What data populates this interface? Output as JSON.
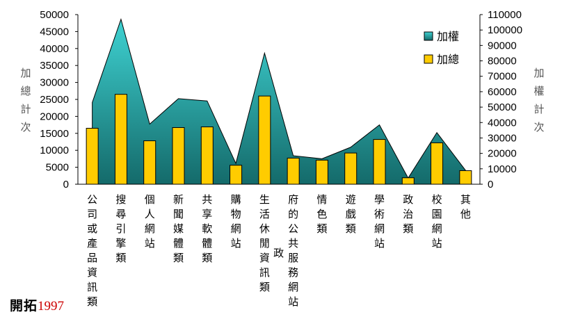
{
  "chart_data": {
    "type": "bar+area",
    "categories": [
      "公司或產品資訊類",
      "搜尋引擎類",
      "個人網站",
      "新聞媒體類",
      "共享軟體類",
      "購物網站",
      "生活休閒資訊類",
      "政府的公共服務網站",
      "情色類",
      "遊戲類",
      "學術網站",
      "政治類",
      "校園網站",
      "其他"
    ],
    "series": [
      {
        "name": "加權",
        "type": "area",
        "axis": "right",
        "color": "#2a8f8f",
        "values": [
          53000,
          107000,
          39000,
          55500,
          54000,
          13500,
          85000,
          18500,
          16500,
          24000,
          38500,
          4000,
          33500,
          9000
        ]
      },
      {
        "name": "加總",
        "type": "bar",
        "axis": "left",
        "color": "#ffcc00",
        "values": [
          16500,
          26500,
          12800,
          16700,
          16900,
          5600,
          26000,
          7700,
          7100,
          9200,
          13200,
          1900,
          12200,
          4000
        ]
      }
    ],
    "ylabel_left": "加總計次",
    "ylabel_right": "加權計次",
    "ylim_left": [
      0,
      50000
    ],
    "yticks_left": [
      0,
      5000,
      10000,
      15000,
      20000,
      25000,
      30000,
      35000,
      40000,
      45000,
      50000
    ],
    "ylim_right": [
      0,
      110000
    ],
    "yticks_right": [
      0,
      10000,
      20000,
      30000,
      40000,
      50000,
      60000,
      70000,
      80000,
      90000,
      100000,
      110000
    ],
    "legend": "top-right",
    "grid": false
  },
  "footer": {
    "logo_text": "開拓",
    "logo_year": "1997"
  }
}
